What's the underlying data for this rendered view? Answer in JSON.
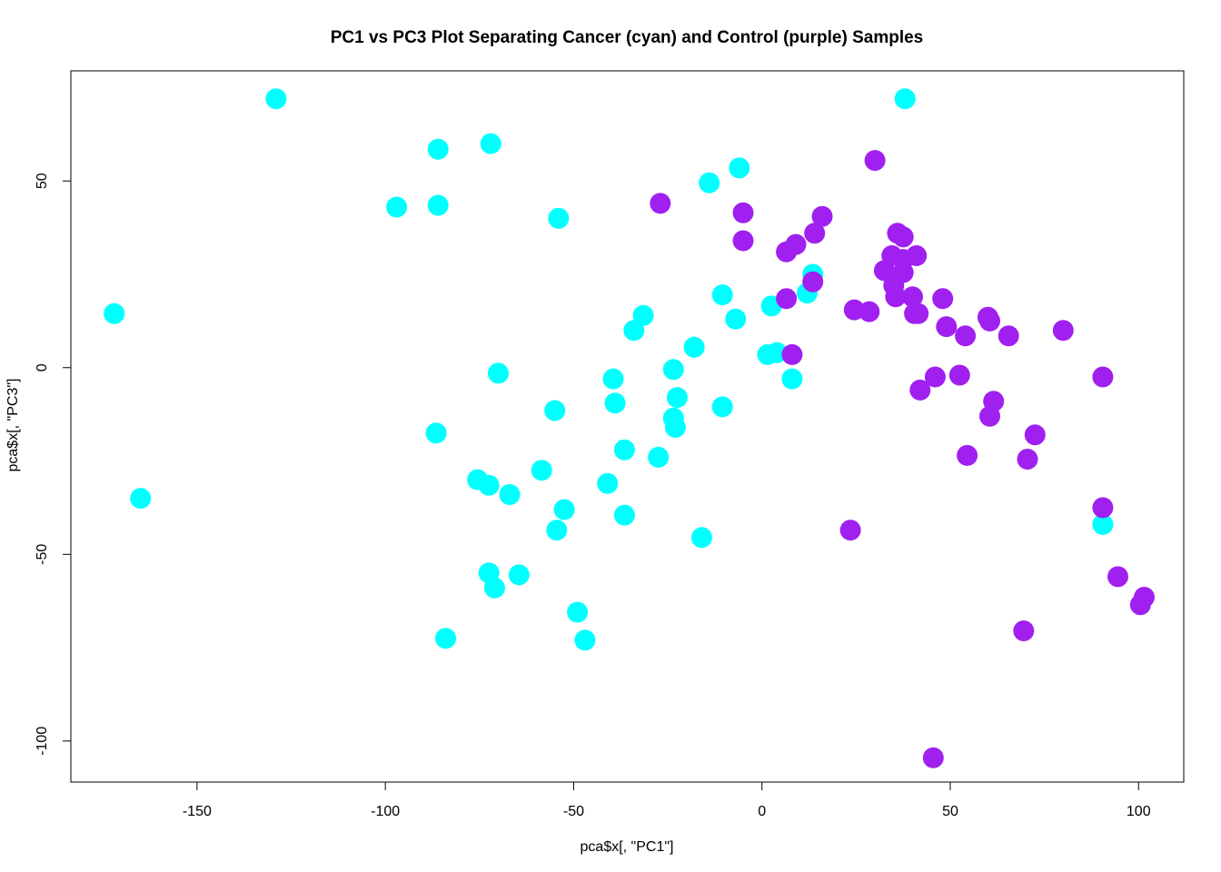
{
  "chart_data": {
    "type": "scatter",
    "title": "PC1 vs PC3 Plot Separating Cancer (cyan) and Control (purple) Samples",
    "xlabel": "pca$x[, \"PC1\"]",
    "ylabel": "pca$x[, \"PC3\"]",
    "xlim": [
      -183.5,
      112
    ],
    "ylim": [
      -111,
      79.5
    ],
    "xticks": [
      -150,
      -100,
      -50,
      0,
      50,
      100
    ],
    "yticks": [
      -100,
      -50,
      0,
      50
    ],
    "grid": false,
    "legend": "none",
    "series": [
      {
        "color": "#00FFFF",
        "points": [
          [
            -172,
            14.5
          ],
          [
            -165,
            -35
          ],
          [
            -129,
            72
          ],
          [
            -97,
            43
          ],
          [
            -86,
            58.5
          ],
          [
            -86,
            43.5
          ],
          [
            -86.5,
            -17.5
          ],
          [
            -84,
            -72.5
          ],
          [
            -72,
            60
          ],
          [
            -54,
            40
          ],
          [
            -70,
            -1.5
          ],
          [
            -75.5,
            -30
          ],
          [
            -72.5,
            -31.5
          ],
          [
            -67,
            -34
          ],
          [
            -72.5,
            -55
          ],
          [
            -71,
            -59
          ],
          [
            -64.5,
            -55.5
          ],
          [
            -58.5,
            -27.5
          ],
          [
            -55,
            -11.5
          ],
          [
            -54.5,
            -43.5
          ],
          [
            -52.5,
            -38
          ],
          [
            -49,
            -65.5
          ],
          [
            -47,
            -73
          ],
          [
            -41,
            -31
          ],
          [
            -39.5,
            -3
          ],
          [
            -39,
            -9.5
          ],
          [
            -36.5,
            -22
          ],
          [
            -36.5,
            -39.5
          ],
          [
            -34,
            10
          ],
          [
            -31.5,
            14
          ],
          [
            -27.5,
            -24
          ],
          [
            -23.5,
            -0.5
          ],
          [
            -22.5,
            -8
          ],
          [
            -23.5,
            -13.5
          ],
          [
            -23,
            -16
          ],
          [
            -18,
            5.5
          ],
          [
            -16,
            -45.5
          ],
          [
            -14,
            49.5
          ],
          [
            -10.5,
            19.5
          ],
          [
            -10.5,
            -10.5
          ],
          [
            -7,
            13
          ],
          [
            -6,
            53.5
          ],
          [
            1.5,
            3.5
          ],
          [
            2.5,
            16.5
          ],
          [
            4,
            4
          ],
          [
            8,
            -3
          ],
          [
            12,
            20
          ],
          [
            13.5,
            25
          ],
          [
            38,
            72
          ],
          [
            90.5,
            -42
          ]
        ]
      },
      {
        "color": "#A020F0",
        "points": [
          [
            -27,
            44
          ],
          [
            -5,
            41.5
          ],
          [
            -5,
            34
          ],
          [
            6.5,
            31
          ],
          [
            9,
            33
          ],
          [
            6.5,
            18.5
          ],
          [
            8,
            3.5
          ],
          [
            14,
            36
          ],
          [
            16,
            40.5
          ],
          [
            13.5,
            23
          ],
          [
            24.5,
            15.5
          ],
          [
            28.5,
            15
          ],
          [
            30,
            55.5
          ],
          [
            32.5,
            26
          ],
          [
            34.5,
            30
          ],
          [
            35,
            22
          ],
          [
            36,
            36
          ],
          [
            35.5,
            19
          ],
          [
            37.5,
            35
          ],
          [
            37.5,
            25.5
          ],
          [
            37.5,
            29
          ],
          [
            40,
            19
          ],
          [
            40.5,
            14.5
          ],
          [
            41,
            30
          ],
          [
            41.5,
            14.5
          ],
          [
            42,
            -6
          ],
          [
            48,
            18.5
          ],
          [
            49,
            11
          ],
          [
            46,
            -2.5
          ],
          [
            52.5,
            -2
          ],
          [
            54,
            8.5
          ],
          [
            54.5,
            -23.5
          ],
          [
            60,
            13.5
          ],
          [
            60.5,
            12.5
          ],
          [
            60.5,
            -13
          ],
          [
            61.5,
            -9
          ],
          [
            65.5,
            8.5
          ],
          [
            70.5,
            -24.5
          ],
          [
            72.5,
            -18
          ],
          [
            69.5,
            -70.5
          ],
          [
            80,
            10
          ],
          [
            90.5,
            -2.5
          ],
          [
            90.5,
            -37.5
          ],
          [
            94.5,
            -56
          ],
          [
            100.5,
            -63.5
          ],
          [
            101.5,
            -61.5
          ],
          [
            23.5,
            -43.5
          ],
          [
            45.5,
            -104.5
          ]
        ]
      }
    ]
  }
}
